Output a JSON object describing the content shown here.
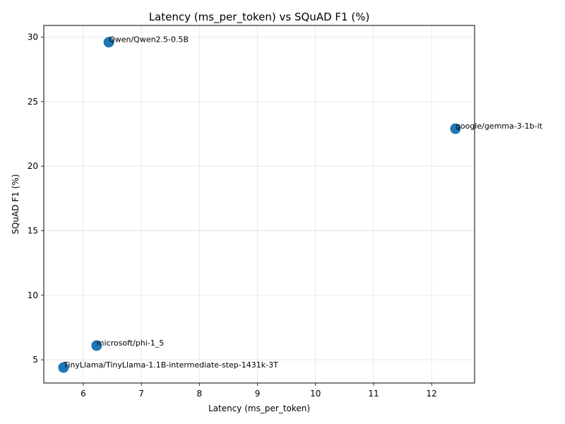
{
  "chart_data": {
    "type": "scatter",
    "title": "Latency (ms_per_token) vs SQuAD F1 (%)",
    "xlabel": "Latency (ms_per_token)",
    "ylabel": "SQuAD F1 (%)",
    "xlim": [
      5.32,
      12.74
    ],
    "ylim": [
      3.2,
      30.9
    ],
    "xticks": [
      6,
      7,
      8,
      9,
      10,
      11,
      12
    ],
    "yticks": [
      5,
      10,
      15,
      20,
      25,
      30
    ],
    "grid": true,
    "color": "#1f77b4",
    "points": [
      {
        "label": "Qwen/Qwen2.5-0.5B",
        "x": 6.44,
        "y": 29.6
      },
      {
        "label": "google/gemma-3-1b-it",
        "x": 12.41,
        "y": 22.9
      },
      {
        "label": "microsoft/phi-1_5",
        "x": 6.23,
        "y": 6.1
      },
      {
        "label": "TinyLlama/TinyLlama-1.1B-intermediate-step-1431k-3T",
        "x": 5.66,
        "y": 4.4
      }
    ]
  }
}
